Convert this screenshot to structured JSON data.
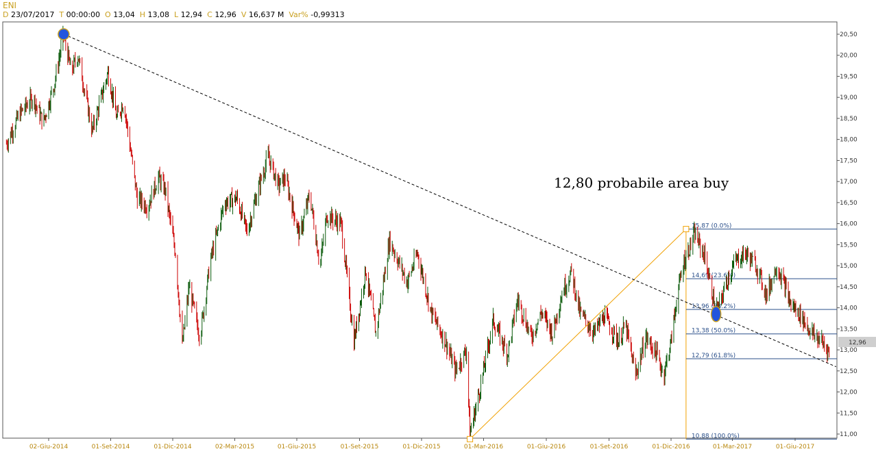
{
  "header": {
    "symbol": "ENI",
    "d_key": "D",
    "date": "23/07/2017",
    "t_key": "T",
    "time": "00:00:00",
    "o_key": "O",
    "open": "13,04",
    "h_key": "H",
    "high": "13,08",
    "l_key": "L",
    "low": "12,94",
    "c_key": "C",
    "close": "12,96",
    "v_key": "V",
    "volume": "16,637 M",
    "var_key": "Var%",
    "var": "-0,99313"
  },
  "annotation": "12,80 probabile area buy",
  "chart_data": {
    "type": "candlestick",
    "title": "ENI",
    "last_price": "12,96",
    "ylim": [
      10.8,
      20.75
    ],
    "y_ticks": [
      "20,50",
      "20,00",
      "19,50",
      "19,00",
      "18,50",
      "18,00",
      "17,50",
      "17,00",
      "16,50",
      "16,00",
      "15,50",
      "15,00",
      "14,50",
      "14,00",
      "13,50",
      "13,00",
      "12,50",
      "12,00",
      "11,50",
      "11,00"
    ],
    "x_ticks": [
      "02-Giu-2014",
      "01-Set-2014",
      "01-Dic-2014",
      "02-Mar-2015",
      "01-Giu-2015",
      "01-Set-2015",
      "01-Dic-2015",
      "01-Mar-2016",
      "01-Giu-2016",
      "01-Set-2016",
      "01-Dic-2016",
      "01-Mar-2017",
      "01-Giu-2017"
    ],
    "price_path": [
      [
        "2014-04-01",
        17.9
      ],
      [
        "2014-04-20",
        18.6
      ],
      [
        "2014-05-10",
        19.0
      ],
      [
        "2014-05-25",
        18.4
      ],
      [
        "2014-06-10",
        19.3
      ],
      [
        "2014-06-24",
        20.5
      ],
      [
        "2014-07-05",
        19.6
      ],
      [
        "2014-07-15",
        20.0
      ],
      [
        "2014-08-05",
        18.2
      ],
      [
        "2014-08-20",
        19.1
      ],
      [
        "2014-08-28",
        19.6
      ],
      [
        "2014-09-10",
        18.5
      ],
      [
        "2014-09-20",
        18.9
      ],
      [
        "2014-10-10",
        16.6
      ],
      [
        "2014-10-25",
        16.4
      ],
      [
        "2014-11-10",
        17.1
      ],
      [
        "2014-11-20",
        16.8
      ],
      [
        "2014-12-05",
        15.3
      ],
      [
        "2014-12-15",
        13.1
      ],
      [
        "2014-12-25",
        14.5
      ],
      [
        "2015-01-10",
        13.3
      ],
      [
        "2015-01-25",
        15.1
      ],
      [
        "2015-02-15",
        16.5
      ],
      [
        "2015-03-05",
        16.6
      ],
      [
        "2015-03-20",
        15.8
      ],
      [
        "2015-04-05",
        16.8
      ],
      [
        "2015-04-20",
        17.6
      ],
      [
        "2015-05-05",
        16.9
      ],
      [
        "2015-05-15",
        17.1
      ],
      [
        "2015-06-05",
        15.7
      ],
      [
        "2015-06-20",
        16.7
      ],
      [
        "2015-07-05",
        15.0
      ],
      [
        "2015-07-15",
        16.2
      ],
      [
        "2015-08-05",
        16.0
      ],
      [
        "2015-08-24",
        13.2
      ],
      [
        "2015-09-10",
        14.9
      ],
      [
        "2015-09-25",
        13.4
      ],
      [
        "2015-10-15",
        15.6
      ],
      [
        "2015-11-10",
        14.6
      ],
      [
        "2015-11-25",
        15.3
      ],
      [
        "2015-12-15",
        13.9
      ],
      [
        "2016-01-05",
        13.2
      ],
      [
        "2016-01-20",
        12.5
      ],
      [
        "2016-02-05",
        13.0
      ],
      [
        "2016-02-10",
        11.0
      ],
      [
        "2016-02-25",
        12.1
      ],
      [
        "2016-03-15",
        13.7
      ],
      [
        "2016-04-05",
        12.9
      ],
      [
        "2016-04-20",
        14.2
      ],
      [
        "2016-05-10",
        13.3
      ],
      [
        "2016-05-25",
        13.9
      ],
      [
        "2016-06-10",
        13.4
      ],
      [
        "2016-06-25",
        14.4
      ],
      [
        "2016-07-08",
        14.85
      ],
      [
        "2016-07-20",
        13.9
      ],
      [
        "2016-08-10",
        13.4
      ],
      [
        "2016-08-25",
        13.8
      ],
      [
        "2016-09-15",
        13.2
      ],
      [
        "2016-09-25",
        13.6
      ],
      [
        "2016-10-10",
        12.4
      ],
      [
        "2016-10-25",
        13.3
      ],
      [
        "2016-11-10",
        12.9
      ],
      [
        "2016-11-20",
        12.4
      ],
      [
        "2016-12-01",
        13.2
      ],
      [
        "2016-12-10",
        14.3
      ],
      [
        "2016-12-20",
        15.1
      ],
      [
        "2017-01-05",
        15.75
      ],
      [
        "2017-01-20",
        15.2
      ],
      [
        "2017-02-01",
        14.2
      ],
      [
        "2017-02-08",
        13.95
      ],
      [
        "2017-02-20",
        14.6
      ],
      [
        "2017-03-05",
        15.1
      ],
      [
        "2017-03-20",
        15.3
      ],
      [
        "2017-04-05",
        15.0
      ],
      [
        "2017-04-20",
        14.3
      ],
      [
        "2017-05-05",
        15.0
      ],
      [
        "2017-05-15",
        14.6
      ],
      [
        "2017-05-25",
        14.1
      ],
      [
        "2017-06-10",
        13.8
      ],
      [
        "2017-06-25",
        13.4
      ],
      [
        "2017-07-10",
        13.2
      ],
      [
        "2017-07-21",
        12.96
      ]
    ],
    "trendline": {
      "style": "dashed",
      "from": [
        "2014-06-24",
        20.5
      ],
      "to": [
        "2017-07-31",
        12.6
      ]
    },
    "fib_swing": {
      "from": [
        "2016-02-10",
        10.88
      ],
      "to": [
        "2016-12-23",
        15.87
      ]
    },
    "fibonacci_levels": [
      {
        "label": "15,87 (0.0%)",
        "value": 15.87
      },
      {
        "label": "14,69 (23.6%)",
        "value": 14.69
      },
      {
        "label": "13,96 (38.2%)",
        "value": 13.96
      },
      {
        "label": "13,38 (50.0%)",
        "value": 13.38
      },
      {
        "label": "12,79 (61.8%)",
        "value": 12.79
      },
      {
        "label": "10,88 (100.0%)",
        "value": 10.88
      }
    ],
    "markers": [
      {
        "date": "2014-06-24",
        "value": 20.5
      },
      {
        "date": "2017-02-05",
        "value": 13.85
      }
    ],
    "colors": {
      "up": "#0a5a0a",
      "down": "#cc0000",
      "fib": "#2a4f8a",
      "swing": "#f0a000",
      "marker": "#2255dd",
      "axis_text": "#b8860b"
    }
  }
}
